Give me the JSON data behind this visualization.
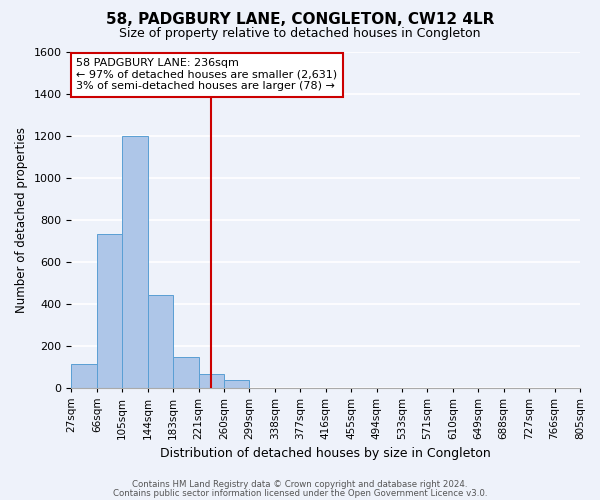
{
  "title": "58, PADGBURY LANE, CONGLETON, CW12 4LR",
  "subtitle": "Size of property relative to detached houses in Congleton",
  "xlabel": "Distribution of detached houses by size in Congleton",
  "ylabel": "Number of detached properties",
  "bar_values": [
    110,
    730,
    1200,
    440,
    145,
    65,
    35,
    0,
    0,
    0,
    0,
    0,
    0,
    0,
    0,
    0,
    0,
    0,
    0,
    0
  ],
  "bin_edge_labels": [
    "27sqm",
    "66sqm",
    "105sqm",
    "144sqm",
    "183sqm",
    "221sqm",
    "260sqm",
    "299sqm",
    "338sqm",
    "377sqm",
    "416sqm",
    "455sqm",
    "494sqm",
    "533sqm",
    "571sqm",
    "610sqm",
    "649sqm",
    "688sqm",
    "727sqm",
    "766sqm",
    "805sqm"
  ],
  "bar_color": "#aec6e8",
  "bar_edge_color": "#5a9fd4",
  "vline_x": 5.5,
  "vline_color": "#cc0000",
  "ylim": [
    0,
    1600
  ],
  "yticks": [
    0,
    200,
    400,
    600,
    800,
    1000,
    1200,
    1400,
    1600
  ],
  "annotation_title": "58 PADGBURY LANE: 236sqm",
  "annotation_line1": "← 97% of detached houses are smaller (2,631)",
  "annotation_line2": "3% of semi-detached houses are larger (78) →",
  "footer1": "Contains HM Land Registry data © Crown copyright and database right 2024.",
  "footer2": "Contains public sector information licensed under the Open Government Licence v3.0.",
  "background_color": "#eef2fa",
  "grid_color": "#ffffff",
  "figsize": [
    6.0,
    5.0
  ],
  "dpi": 100
}
